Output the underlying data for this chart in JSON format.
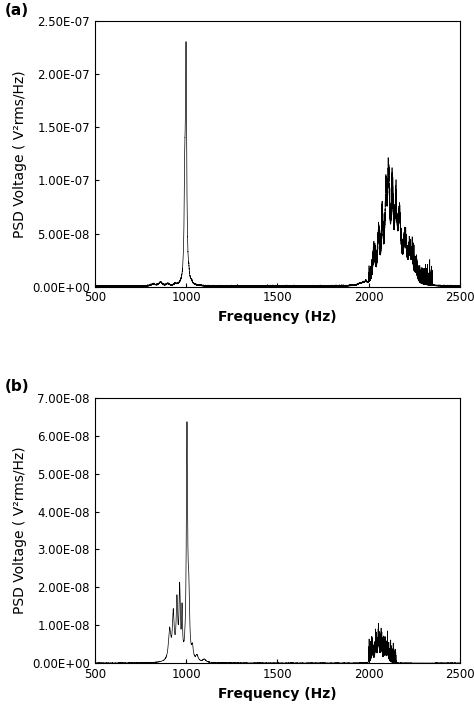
{
  "fig_width": 4.74,
  "fig_height": 7.13,
  "dpi": 100,
  "background_color": "#ffffff",
  "panel_a": {
    "label": "(a)",
    "xlabel": "Frequency (Hz)",
    "ylabel": "PSD Voltage ( V²rms/Hz)",
    "xlim": [
      500,
      2500
    ],
    "ylim": [
      0,
      2.5e-07
    ],
    "yticks": [
      0,
      5e-08,
      1e-07,
      1.5e-07,
      2e-07,
      2.5e-07
    ],
    "ytick_labels": [
      "0.00E+00",
      "5.00E-08",
      "1.00E-07",
      "1.50E-07",
      "2.00E-07",
      "2.50E-07"
    ],
    "xticks": [
      500,
      1000,
      1500,
      2000,
      2500
    ]
  },
  "panel_b": {
    "label": "(b)",
    "xlabel": "Frequency (Hz)",
    "ylabel": "PSD Voltage ( V²rms/Hz)",
    "xlim": [
      500,
      2500
    ],
    "ylim": [
      0,
      7e-08
    ],
    "yticks": [
      0,
      1e-08,
      2e-08,
      3e-08,
      4e-08,
      5e-08,
      6e-08,
      7e-08
    ],
    "ytick_labels": [
      "0.00E+00",
      "1.00E-08",
      "2.00E-08",
      "3.00E-08",
      "4.00E-08",
      "5.00E-08",
      "6.00E-08",
      "7.00E-08"
    ],
    "xticks": [
      500,
      1000,
      1500,
      2000,
      2500
    ]
  },
  "line_color": "#000000",
  "line_width": 0.5,
  "label_fontsize": 10,
  "tick_fontsize": 8.5,
  "panel_label_fontsize": 11
}
